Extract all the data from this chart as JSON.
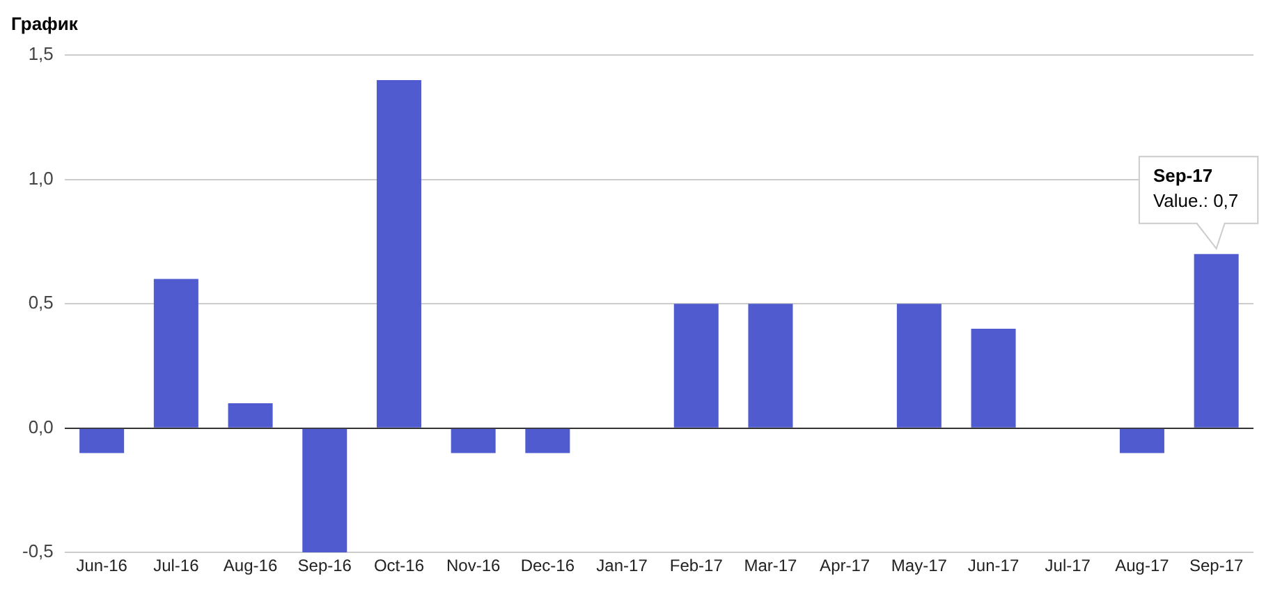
{
  "chart_data": {
    "type": "bar",
    "title": "График",
    "categories": [
      "Jun-16",
      "Jul-16",
      "Aug-16",
      "Sep-16",
      "Oct-16",
      "Nov-16",
      "Dec-16",
      "Jan-17",
      "Feb-17",
      "Mar-17",
      "Apr-17",
      "May-17",
      "Jun-17",
      "Jul-17",
      "Aug-17",
      "Sep-17"
    ],
    "values": [
      -0.1,
      0.6,
      0.1,
      -0.5,
      1.4,
      -0.1,
      -0.1,
      0,
      0.5,
      0.5,
      0,
      0.5,
      0.4,
      0,
      -0.1,
      0.7
    ],
    "color": "#4f5bcf",
    "ylim": [
      -0.5,
      1.5
    ],
    "yticks": [
      {
        "value": -0.5,
        "label": "-0,5"
      },
      {
        "value": 0,
        "label": "0,0"
      },
      {
        "value": 0.5,
        "label": "0,5"
      },
      {
        "value": 1,
        "label": "1,0"
      },
      {
        "value": 1.5,
        "label": "1,5"
      }
    ],
    "grid": "y",
    "annotations": [
      {
        "text": "Sep-17\nValue.: 0,7",
        "x": "Sep-17",
        "y": 0.7
      }
    ]
  }
}
